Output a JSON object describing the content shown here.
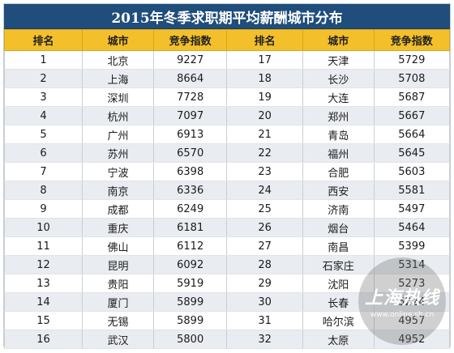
{
  "title": "2015年冬季求职期平均薪酬城市分布",
  "headers": [
    "排名",
    "城市",
    "竞争指数",
    "排名",
    "城市",
    "竞争指数"
  ],
  "rows": [
    [
      "1",
      "北京",
      "9227",
      "17",
      "天津",
      "5729"
    ],
    [
      "2",
      "上海",
      "8664",
      "18",
      "长沙",
      "5708"
    ],
    [
      "3",
      "深圳",
      "7728",
      "19",
      "大连",
      "5687"
    ],
    [
      "4",
      "杭州",
      "7097",
      "20",
      "郑州",
      "5667"
    ],
    [
      "5",
      "广州",
      "6913",
      "21",
      "青岛",
      "5664"
    ],
    [
      "6",
      "苏州",
      "6570",
      "22",
      "福州",
      "5645"
    ],
    [
      "7",
      "宁波",
      "6398",
      "23",
      "合肥",
      "5603"
    ],
    [
      "8",
      "南京",
      "6336",
      "24",
      "西安",
      "5581"
    ],
    [
      "9",
      "成都",
      "6249",
      "25",
      "济南",
      "5497"
    ],
    [
      "10",
      "重庆",
      "6181",
      "26",
      "烟台",
      "5464"
    ],
    [
      "11",
      "佛山",
      "6112",
      "27",
      "南昌",
      "5399"
    ],
    [
      "12",
      "昆明",
      "6092",
      "28",
      "石家庄",
      "5314"
    ],
    [
      "13",
      "贵阳",
      "5919",
      "29",
      "沈阳",
      "5273"
    ],
    [
      "14",
      "厦门",
      "5899",
      "30",
      "长春",
      "5224"
    ],
    [
      "15",
      "无锡",
      "5899",
      "31",
      "哈尔滨",
      "4957"
    ],
    [
      "16",
      "武汉",
      "5800",
      "32",
      "太原",
      "4952"
    ]
  ],
  "watermark": {
    "logo": "上海热线",
    "url": "www.online.sh.cn"
  },
  "colors": {
    "title_bg": "#1f4d7c",
    "header_bg": "#f3c02c",
    "stripe": "#e9edf2"
  }
}
